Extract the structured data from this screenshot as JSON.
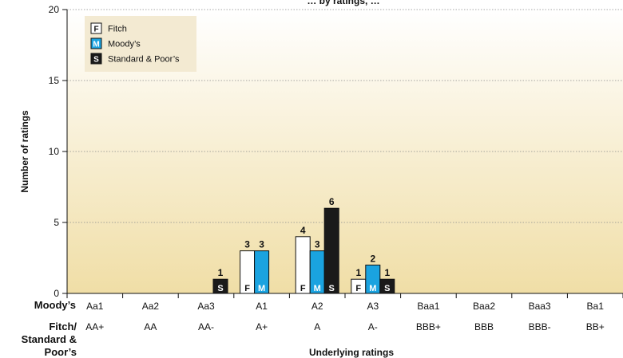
{
  "chart_data": {
    "type": "bar",
    "title": "… by ratings, …",
    "ylabel": "Number of ratings",
    "xlabel": "Underlying ratings",
    "ylim": [
      0,
      20
    ],
    "yticks": [
      0,
      5,
      10,
      15,
      20
    ],
    "grid": "horizontal dotted",
    "legend_position": "top-left",
    "row_labels": [
      "Moody’s",
      "Fitch/",
      "Standard &",
      "Poor’s"
    ],
    "categories_moodys": [
      "Aa1",
      "Aa2",
      "Aa3",
      "A1",
      "A2",
      "A3",
      "Baa1",
      "Baa2",
      "Baa3",
      "Ba1"
    ],
    "categories_fitch_sp": [
      "AA+",
      "AA",
      "AA-",
      "A+",
      "A",
      "A-",
      "BBB+",
      "BBB",
      "BBB-",
      "BB+"
    ],
    "series": [
      {
        "name": "Fitch",
        "key": "F",
        "color": "#ffffff",
        "key_text_color": "#111111",
        "values": [
          0,
          0,
          0,
          3,
          4,
          1,
          0,
          0,
          0,
          0
        ]
      },
      {
        "name": "Moody’s",
        "key": "M",
        "color": "#1aa3e0",
        "key_text_color": "#ffffff",
        "values": [
          0,
          0,
          0,
          3,
          3,
          2,
          0,
          0,
          0,
          0
        ]
      },
      {
        "name": "Standard & Poor’s",
        "key": "S",
        "color": "#1a1a1a",
        "key_text_color": "#ffffff",
        "values": [
          0,
          0,
          1,
          0,
          6,
          1,
          0,
          0,
          0,
          0
        ]
      }
    ],
    "colors": {
      "plot_gradient_top": "#ffffff",
      "plot_gradient_bottom": "#f0dea6",
      "grid": "#8a8a8a",
      "legend_bg": "#f3ead2"
    }
  }
}
